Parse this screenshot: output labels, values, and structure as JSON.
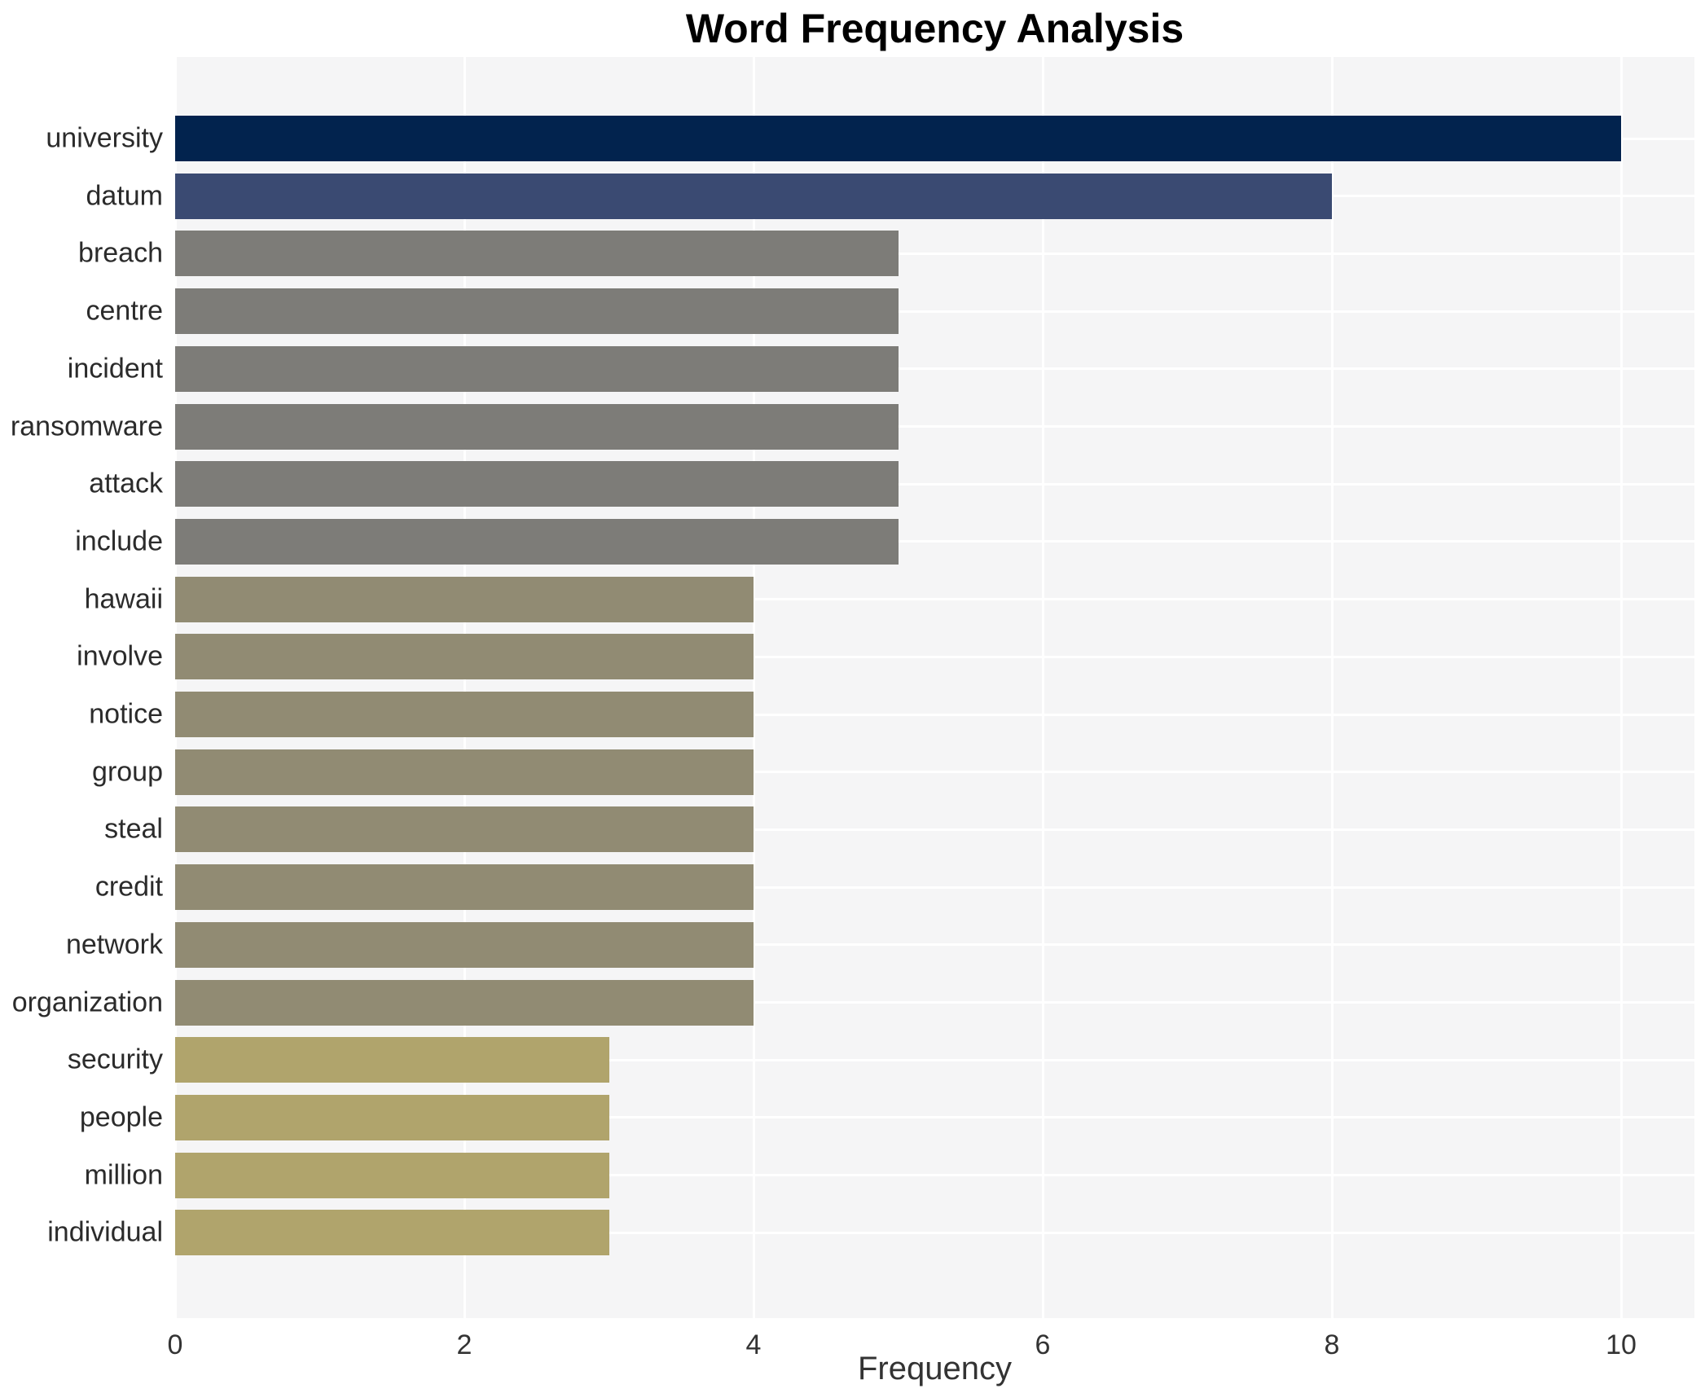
{
  "chart_data": {
    "type": "bar",
    "orientation": "horizontal",
    "title": "Word Frequency Analysis",
    "xlabel": "Frequency",
    "ylabel": "",
    "x_ticks": [
      0,
      2,
      4,
      6,
      8,
      10
    ],
    "xlim": [
      0,
      10.5
    ],
    "grid": true,
    "legend": false,
    "plot_background": "#f5f5f6",
    "grid_color": "#ffffff",
    "title_color": "#000000",
    "label_color": "#2b2b2b",
    "tick_color": "#333333",
    "categories": [
      "university",
      "datum",
      "breach",
      "centre",
      "incident",
      "ransomware",
      "attack",
      "include",
      "hawaii",
      "involve",
      "notice",
      "group",
      "steal",
      "credit",
      "network",
      "organization",
      "security",
      "people",
      "million",
      "individual"
    ],
    "values": [
      10,
      8,
      5,
      5,
      5,
      5,
      5,
      5,
      4,
      4,
      4,
      4,
      4,
      4,
      4,
      4,
      3,
      3,
      3,
      3
    ],
    "bar_colors": [
      "#02234e",
      "#3a4a72",
      "#7d7c78",
      "#7d7c78",
      "#7d7c78",
      "#7d7c78",
      "#7d7c78",
      "#7d7c78",
      "#918b73",
      "#918b73",
      "#918b73",
      "#918b73",
      "#918b73",
      "#918b73",
      "#918b73",
      "#918b73",
      "#b0a46c",
      "#b0a46c",
      "#b0a46c",
      "#b0a46c"
    ]
  }
}
